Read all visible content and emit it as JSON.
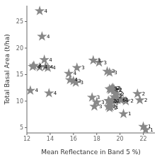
{
  "chart_data": {
    "type": "scatter",
    "xlabel": "Mean Reflectance in Band 5 %)",
    "ylabel": "Total Basal Area (t/ha)",
    "xlim": [
      12,
      23
    ],
    "ylim": [
      4,
      28
    ],
    "xticks": [
      12,
      14,
      16,
      18,
      20,
      22
    ],
    "yticks": [
      5,
      10,
      15,
      20,
      25
    ],
    "marker": "star",
    "color": "#888888",
    "points": [
      {
        "x": 13.1,
        "y": 27.0,
        "label": "4"
      },
      {
        "x": 13.3,
        "y": 22.2,
        "label": "4"
      },
      {
        "x": 13.5,
        "y": 17.8,
        "label": "4"
      },
      {
        "x": 13.6,
        "y": 16.5,
        "label": "4"
      },
      {
        "x": 13.8,
        "y": 16.3,
        "label": "4"
      },
      {
        "x": 13.1,
        "y": 16.4,
        "label": "4"
      },
      {
        "x": 12.5,
        "y": 16.5,
        "label": "4"
      },
      {
        "x": 12.6,
        "y": 16.7,
        "label": "4"
      },
      {
        "x": 13.9,
        "y": 11.5,
        "label": "4"
      },
      {
        "x": 15.6,
        "y": 15.2,
        "label": "4"
      },
      {
        "x": 15.7,
        "y": 14.0,
        "label": "4"
      },
      {
        "x": 16.0,
        "y": 13.8,
        "label": "3"
      },
      {
        "x": 16.2,
        "y": 13.5,
        "label": "3"
      },
      {
        "x": 16.3,
        "y": 16.3,
        "label": "3"
      },
      {
        "x": 17.6,
        "y": 10.7,
        "label": "3"
      },
      {
        "x": 17.8,
        "y": 9.0,
        "label": "3"
      },
      {
        "x": 18.0,
        "y": 9.8,
        "label": "3"
      },
      {
        "x": 17.7,
        "y": 17.7,
        "label": "3"
      },
      {
        "x": 18.2,
        "y": 17.3,
        "label": "3"
      },
      {
        "x": 18.9,
        "y": 15.6,
        "label": "3"
      },
      {
        "x": 19.1,
        "y": 15.4,
        "label": "3"
      },
      {
        "x": 19.3,
        "y": 12.4,
        "label": "2"
      },
      {
        "x": 19.4,
        "y": 12.5,
        "label": "2"
      },
      {
        "x": 19.5,
        "y": 12.2,
        "label": "2"
      },
      {
        "x": 19.5,
        "y": 12.0,
        "label": "2"
      },
      {
        "x": 19.6,
        "y": 11.5,
        "label": "2"
      },
      {
        "x": 19.7,
        "y": 11.2,
        "label": "2"
      },
      {
        "x": 19.8,
        "y": 10.5,
        "label": "2"
      },
      {
        "x": 20.0,
        "y": 10.3,
        "label": "2"
      },
      {
        "x": 21.5,
        "y": 11.4,
        "label": "2"
      },
      {
        "x": 21.7,
        "y": 10.2,
        "label": "2"
      },
      {
        "x": 19.1,
        "y": 12.3,
        "label": "3"
      },
      {
        "x": 19.2,
        "y": 12.1,
        "label": "3"
      },
      {
        "x": 19.0,
        "y": 10.1,
        "label": "2"
      },
      {
        "x": 19.1,
        "y": 9.9,
        "label": "2"
      },
      {
        "x": 19.2,
        "y": 9.7,
        "label": "1"
      },
      {
        "x": 19.3,
        "y": 10.0,
        "label": "1"
      },
      {
        "x": 19.8,
        "y": 10.2,
        "label": "1"
      },
      {
        "x": 20.1,
        "y": 10.2,
        "label": "1"
      },
      {
        "x": 20.3,
        "y": 7.6,
        "label": "1"
      },
      {
        "x": 20.5,
        "y": 10.0,
        "label": "2"
      },
      {
        "x": 19.2,
        "y": 8.9,
        "label": "1"
      },
      {
        "x": 22.0,
        "y": 5.2,
        "label": "1"
      },
      {
        "x": 22.2,
        "y": 4.6,
        "label": "1"
      },
      {
        "x": 19.0,
        "y": 9.0,
        "label": "2"
      },
      {
        "x": 19.1,
        "y": 8.7,
        "label": "2"
      },
      {
        "x": 12.3,
        "y": 12.0,
        "label": "4"
      },
      {
        "x": 19.5,
        "y": 10.8,
        "label": "2"
      }
    ]
  }
}
